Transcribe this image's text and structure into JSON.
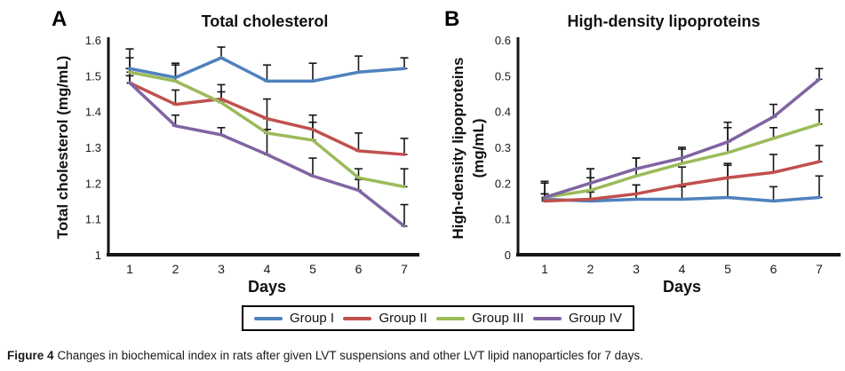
{
  "figure": {
    "caption_prefix": "Figure 4",
    "caption_text": "Changes in biochemical index in rats after given LVT suspensions and other LVT lipid nanoparticles for 7 days."
  },
  "panels": [
    {
      "letter": "A"
    },
    {
      "letter": "B"
    }
  ],
  "legend": {
    "position": "bottom-center-shared",
    "items": [
      {
        "label": "Group I",
        "color": "#4f81bd"
      },
      {
        "label": "Group II",
        "color": "#c0504d"
      },
      {
        "label": "Group III",
        "color": "#9bbb59"
      },
      {
        "label": "Group IV",
        "color": "#8064a2"
      }
    ]
  },
  "chart_data": [
    {
      "type": "line",
      "panel": "A",
      "title": "Total cholesterol",
      "xlabel": "Days",
      "ylabel": "Total cholesterol (mg/mL)",
      "ylabel_lines": [
        "Total cholesterol (mg/mL)"
      ],
      "x": [
        1,
        2,
        3,
        4,
        5,
        6,
        7
      ],
      "xtick_labels": [
        "1",
        "2",
        "3",
        "4",
        "5",
        "6",
        "7"
      ],
      "ylim": [
        1.0,
        1.6
      ],
      "ytick_step": 0.1,
      "ytick_labels": [
        "1",
        "1.1",
        "1.2",
        "1.3",
        "1.4",
        "1.5",
        "1.6"
      ],
      "grid": false,
      "error_bars": "upper, black, capped",
      "series": [
        {
          "name": "Group I",
          "color": "#4f81bd",
          "values": [
            1.52,
            1.495,
            1.55,
            1.485,
            1.485,
            1.51,
            1.52
          ],
          "errors": [
            0.055,
            0.04,
            0.03,
            0.045,
            0.05,
            0.045,
            0.03
          ]
        },
        {
          "name": "Group II",
          "color": "#c0504d",
          "values": [
            1.48,
            1.42,
            1.435,
            1.38,
            1.35,
            1.29,
            1.28
          ],
          "errors": [
            0.04,
            0.04,
            0.04,
            0.055,
            0.04,
            0.05,
            0.045
          ]
        },
        {
          "name": "Group III",
          "color": "#9bbb59",
          "values": [
            1.51,
            1.485,
            1.425,
            1.34,
            1.32,
            1.215,
            1.19
          ],
          "errors": [
            0.04,
            0.045,
            0.03,
            0.04,
            0.05,
            0.025,
            0.05
          ]
        },
        {
          "name": "Group IV",
          "color": "#8064a2",
          "values": [
            1.48,
            1.36,
            1.335,
            1.28,
            1.22,
            1.18,
            1.08
          ],
          "errors": [
            0.02,
            0.03,
            0.02,
            0.07,
            0.05,
            0.03,
            0.06
          ]
        }
      ]
    },
    {
      "type": "line",
      "panel": "B",
      "title": "High-density lipoproteins",
      "xlabel": "Days",
      "ylabel": "High-density lipoproteins (mg/mL)",
      "ylabel_lines": [
        "High-density lipoproteins",
        "(mg/mL)"
      ],
      "x": [
        1,
        2,
        3,
        4,
        5,
        6,
        7
      ],
      "xtick_labels": [
        "1",
        "2",
        "3",
        "4",
        "5",
        "6",
        "7"
      ],
      "ylim": [
        0,
        0.6
      ],
      "ytick_step": 0.1,
      "ytick_labels": [
        "0",
        "0.1",
        "0.2",
        "0.3",
        "0.4",
        "0.5",
        "0.6"
      ],
      "grid": false,
      "error_bars": "upper, black, capped",
      "series": [
        {
          "name": "Group I",
          "color": "#4f81bd",
          "values": [
            0.155,
            0.15,
            0.155,
            0.155,
            0.16,
            0.15,
            0.16
          ],
          "errors": [
            0.05,
            0.065,
            0.04,
            0.035,
            0.09,
            0.04,
            0.06
          ]
        },
        {
          "name": "Group II",
          "color": "#c0504d",
          "values": [
            0.15,
            0.155,
            0.17,
            0.195,
            0.215,
            0.23,
            0.26
          ],
          "errors": [
            0.02,
            0.02,
            0.025,
            0.05,
            0.04,
            0.05,
            0.045
          ]
        },
        {
          "name": "Group III",
          "color": "#9bbb59",
          "values": [
            0.16,
            0.18,
            0.22,
            0.255,
            0.285,
            0.325,
            0.365
          ],
          "errors": [
            0.01,
            0.06,
            0.05,
            0.04,
            0.085,
            0.03,
            0.04
          ]
        },
        {
          "name": "Group IV",
          "color": "#8064a2",
          "values": [
            0.16,
            0.2,
            0.24,
            0.27,
            0.315,
            0.385,
            0.49
          ],
          "errors": [
            0.04,
            0.04,
            0.03,
            0.03,
            0.04,
            0.035,
            0.03
          ]
        }
      ]
    }
  ]
}
